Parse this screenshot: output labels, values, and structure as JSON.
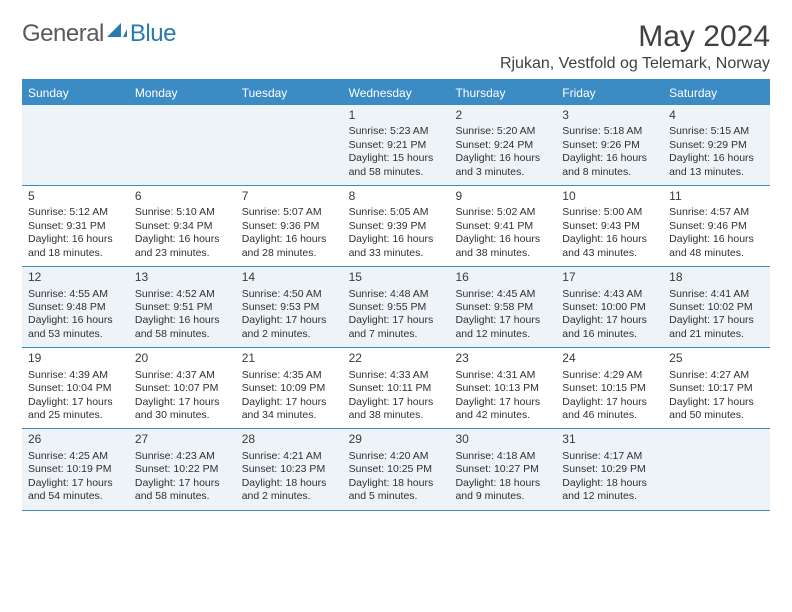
{
  "brand": {
    "word1": "General",
    "word2": "Blue"
  },
  "title": "May 2024",
  "location": "Rjukan, Vestfold og Telemark, Norway",
  "colors": {
    "header_bg": "#3b8bc4",
    "header_text": "#ffffff",
    "border": "#3b8bc4",
    "shade_bg": "#eef3f7",
    "text": "#303030",
    "title_text": "#404040"
  },
  "day_headers": [
    "Sunday",
    "Monday",
    "Tuesday",
    "Wednesday",
    "Thursday",
    "Friday",
    "Saturday"
  ],
  "weeks": [
    [
      {
        "day": "",
        "sunrise": "",
        "sunset": "",
        "daylight": ""
      },
      {
        "day": "",
        "sunrise": "",
        "sunset": "",
        "daylight": ""
      },
      {
        "day": "",
        "sunrise": "",
        "sunset": "",
        "daylight": ""
      },
      {
        "day": "1",
        "sunrise": "Sunrise: 5:23 AM",
        "sunset": "Sunset: 9:21 PM",
        "daylight": "Daylight: 15 hours and 58 minutes."
      },
      {
        "day": "2",
        "sunrise": "Sunrise: 5:20 AM",
        "sunset": "Sunset: 9:24 PM",
        "daylight": "Daylight: 16 hours and 3 minutes."
      },
      {
        "day": "3",
        "sunrise": "Sunrise: 5:18 AM",
        "sunset": "Sunset: 9:26 PM",
        "daylight": "Daylight: 16 hours and 8 minutes."
      },
      {
        "day": "4",
        "sunrise": "Sunrise: 5:15 AM",
        "sunset": "Sunset: 9:29 PM",
        "daylight": "Daylight: 16 hours and 13 minutes."
      }
    ],
    [
      {
        "day": "5",
        "sunrise": "Sunrise: 5:12 AM",
        "sunset": "Sunset: 9:31 PM",
        "daylight": "Daylight: 16 hours and 18 minutes."
      },
      {
        "day": "6",
        "sunrise": "Sunrise: 5:10 AM",
        "sunset": "Sunset: 9:34 PM",
        "daylight": "Daylight: 16 hours and 23 minutes."
      },
      {
        "day": "7",
        "sunrise": "Sunrise: 5:07 AM",
        "sunset": "Sunset: 9:36 PM",
        "daylight": "Daylight: 16 hours and 28 minutes."
      },
      {
        "day": "8",
        "sunrise": "Sunrise: 5:05 AM",
        "sunset": "Sunset: 9:39 PM",
        "daylight": "Daylight: 16 hours and 33 minutes."
      },
      {
        "day": "9",
        "sunrise": "Sunrise: 5:02 AM",
        "sunset": "Sunset: 9:41 PM",
        "daylight": "Daylight: 16 hours and 38 minutes."
      },
      {
        "day": "10",
        "sunrise": "Sunrise: 5:00 AM",
        "sunset": "Sunset: 9:43 PM",
        "daylight": "Daylight: 16 hours and 43 minutes."
      },
      {
        "day": "11",
        "sunrise": "Sunrise: 4:57 AM",
        "sunset": "Sunset: 9:46 PM",
        "daylight": "Daylight: 16 hours and 48 minutes."
      }
    ],
    [
      {
        "day": "12",
        "sunrise": "Sunrise: 4:55 AM",
        "sunset": "Sunset: 9:48 PM",
        "daylight": "Daylight: 16 hours and 53 minutes."
      },
      {
        "day": "13",
        "sunrise": "Sunrise: 4:52 AM",
        "sunset": "Sunset: 9:51 PM",
        "daylight": "Daylight: 16 hours and 58 minutes."
      },
      {
        "day": "14",
        "sunrise": "Sunrise: 4:50 AM",
        "sunset": "Sunset: 9:53 PM",
        "daylight": "Daylight: 17 hours and 2 minutes."
      },
      {
        "day": "15",
        "sunrise": "Sunrise: 4:48 AM",
        "sunset": "Sunset: 9:55 PM",
        "daylight": "Daylight: 17 hours and 7 minutes."
      },
      {
        "day": "16",
        "sunrise": "Sunrise: 4:45 AM",
        "sunset": "Sunset: 9:58 PM",
        "daylight": "Daylight: 17 hours and 12 minutes."
      },
      {
        "day": "17",
        "sunrise": "Sunrise: 4:43 AM",
        "sunset": "Sunset: 10:00 PM",
        "daylight": "Daylight: 17 hours and 16 minutes."
      },
      {
        "day": "18",
        "sunrise": "Sunrise: 4:41 AM",
        "sunset": "Sunset: 10:02 PM",
        "daylight": "Daylight: 17 hours and 21 minutes."
      }
    ],
    [
      {
        "day": "19",
        "sunrise": "Sunrise: 4:39 AM",
        "sunset": "Sunset: 10:04 PM",
        "daylight": "Daylight: 17 hours and 25 minutes."
      },
      {
        "day": "20",
        "sunrise": "Sunrise: 4:37 AM",
        "sunset": "Sunset: 10:07 PM",
        "daylight": "Daylight: 17 hours and 30 minutes."
      },
      {
        "day": "21",
        "sunrise": "Sunrise: 4:35 AM",
        "sunset": "Sunset: 10:09 PM",
        "daylight": "Daylight: 17 hours and 34 minutes."
      },
      {
        "day": "22",
        "sunrise": "Sunrise: 4:33 AM",
        "sunset": "Sunset: 10:11 PM",
        "daylight": "Daylight: 17 hours and 38 minutes."
      },
      {
        "day": "23",
        "sunrise": "Sunrise: 4:31 AM",
        "sunset": "Sunset: 10:13 PM",
        "daylight": "Daylight: 17 hours and 42 minutes."
      },
      {
        "day": "24",
        "sunrise": "Sunrise: 4:29 AM",
        "sunset": "Sunset: 10:15 PM",
        "daylight": "Daylight: 17 hours and 46 minutes."
      },
      {
        "day": "25",
        "sunrise": "Sunrise: 4:27 AM",
        "sunset": "Sunset: 10:17 PM",
        "daylight": "Daylight: 17 hours and 50 minutes."
      }
    ],
    [
      {
        "day": "26",
        "sunrise": "Sunrise: 4:25 AM",
        "sunset": "Sunset: 10:19 PM",
        "daylight": "Daylight: 17 hours and 54 minutes."
      },
      {
        "day": "27",
        "sunrise": "Sunrise: 4:23 AM",
        "sunset": "Sunset: 10:22 PM",
        "daylight": "Daylight: 17 hours and 58 minutes."
      },
      {
        "day": "28",
        "sunrise": "Sunrise: 4:21 AM",
        "sunset": "Sunset: 10:23 PM",
        "daylight": "Daylight: 18 hours and 2 minutes."
      },
      {
        "day": "29",
        "sunrise": "Sunrise: 4:20 AM",
        "sunset": "Sunset: 10:25 PM",
        "daylight": "Daylight: 18 hours and 5 minutes."
      },
      {
        "day": "30",
        "sunrise": "Sunrise: 4:18 AM",
        "sunset": "Sunset: 10:27 PM",
        "daylight": "Daylight: 18 hours and 9 minutes."
      },
      {
        "day": "31",
        "sunrise": "Sunrise: 4:17 AM",
        "sunset": "Sunset: 10:29 PM",
        "daylight": "Daylight: 18 hours and 12 minutes."
      },
      {
        "day": "",
        "sunrise": "",
        "sunset": "",
        "daylight": ""
      }
    ]
  ]
}
